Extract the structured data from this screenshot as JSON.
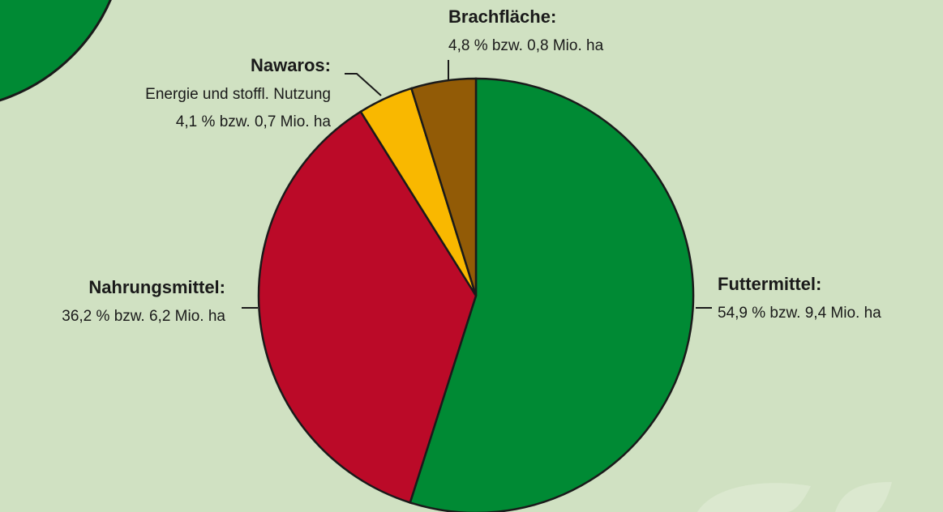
{
  "chart_data": {
    "type": "pie",
    "categories": [
      "Futtermittel:",
      "Nahrungsmittel:",
      "Nawaros:",
      "Brachfläche:"
    ],
    "values": [
      54.9,
      36.2,
      4.1,
      4.8
    ],
    "value_labels": [
      "54,9 % bzw. 9,4 Mio. ha",
      "36,2 % bzw. 6,2 Mio. ha",
      "4,1 % bzw. 0,7 Mio. ha",
      "4,8 % bzw. 0,8 Mio. ha"
    ],
    "descriptions": [
      null,
      null,
      "Energie und stoffl. Nutzung",
      null
    ],
    "colors": [
      "#008a34",
      "#bb0a28",
      "#f9b800",
      "#925b06"
    ]
  }
}
